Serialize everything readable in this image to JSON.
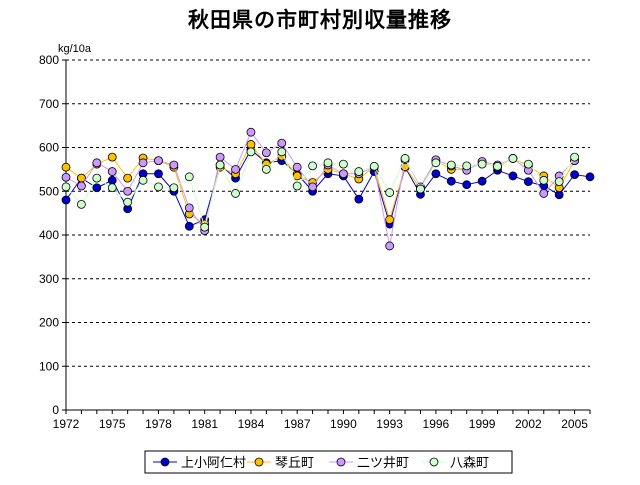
{
  "chart_data": {
    "type": "line",
    "title": "秋田県の市町村別収量推移",
    "ylabel": "kg/10a",
    "xlabel": "",
    "ylim": [
      0,
      800
    ],
    "yticks": [
      0,
      100,
      200,
      300,
      400,
      500,
      600,
      700,
      800
    ],
    "xlim": [
      1972,
      2006
    ],
    "xticks": [
      1972,
      1975,
      1978,
      1981,
      1984,
      1987,
      1990,
      1993,
      1996,
      1999,
      2002,
      2005
    ],
    "grid": "horizontal dashed",
    "legend_position": "bottom",
    "x": [
      1972,
      1973,
      1974,
      1975,
      1976,
      1977,
      1978,
      1979,
      1980,
      1981,
      1982,
      1983,
      1984,
      1985,
      1986,
      1987,
      1988,
      1989,
      1990,
      1991,
      1992,
      1993,
      1994,
      1995,
      1996,
      1997,
      1998,
      1999,
      2000,
      2001,
      2002,
      2003,
      2004,
      2005,
      2006
    ],
    "series": [
      {
        "name": "上小阿仁村",
        "color": "#0000cc",
        "values": [
          480,
          530,
          508,
          525,
          460,
          540,
          540,
          500,
          420,
          435,
          560,
          530,
          595,
          565,
          570,
          540,
          500,
          540,
          535,
          482,
          545,
          425,
          555,
          493,
          540,
          523,
          515,
          523,
          548,
          535,
          522,
          512,
          492,
          538,
          533
        ]
      },
      {
        "name": "琴丘町",
        "color": "#ffc000",
        "values": [
          555,
          530,
          562,
          578,
          530,
          576,
          570,
          555,
          448,
          425,
          555,
          540,
          607,
          562,
          580,
          535,
          520,
          550,
          540,
          528,
          556,
          435,
          556,
          505,
          570,
          550,
          550,
          565,
          555,
          575,
          558,
          535,
          508,
          570,
          null
        ]
      },
      {
        "name": "二ツ井町",
        "color": "#cc99ff",
        "values": [
          532,
          512,
          565,
          545,
          500,
          565,
          570,
          560,
          462,
          410,
          578,
          550,
          635,
          588,
          610,
          555,
          510,
          560,
          540,
          540,
          555,
          375,
          572,
          510,
          572,
          558,
          548,
          568,
          560,
          575,
          548,
          495,
          535,
          570,
          null
        ]
      },
      {
        "name": "八森町",
        "color": "#ccffcc",
        "values": [
          510,
          470,
          530,
          508,
          475,
          525,
          510,
          508,
          533,
          418,
          560,
          495,
          590,
          550,
          590,
          512,
          558,
          565,
          562,
          545,
          557,
          497,
          575,
          505,
          565,
          560,
          558,
          562,
          557,
          575,
          562,
          525,
          522,
          578,
          null
        ]
      }
    ]
  }
}
